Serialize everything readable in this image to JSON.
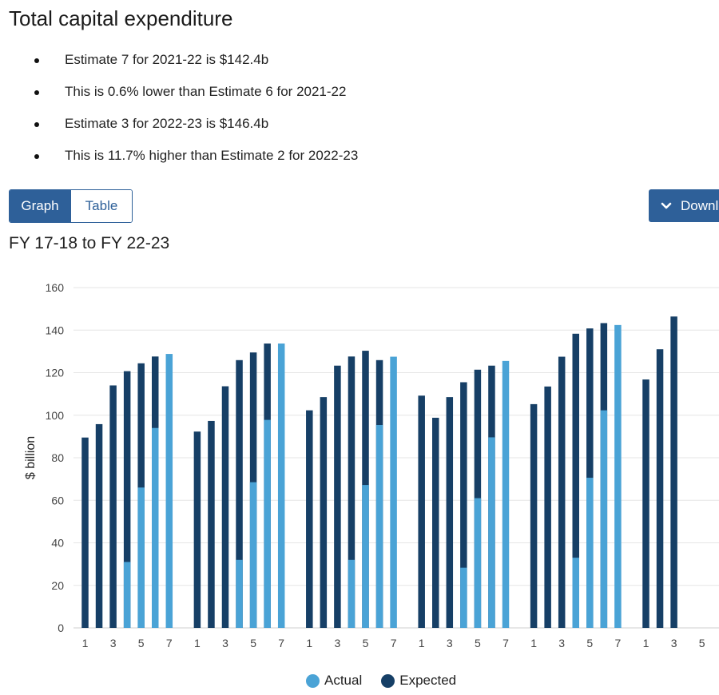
{
  "page": {
    "title": "Total capital expenditure",
    "bullets": [
      "Estimate 7 for 2021-22 is $142.4b",
      "This is 0.6% lower than Estimate 6 for 2021-22",
      "Estimate 3 for 2022-23 is $146.4b",
      "This is 11.7% higher than Estimate 2 for 2022-23"
    ],
    "tabs": {
      "graph": "Graph",
      "table": "Table"
    },
    "download_label": "Download",
    "subtitle": "FY 17-18 to FY 22-23"
  },
  "colors": {
    "actual": "#4aa3d6",
    "expected": "#163f66",
    "button": "#2e6099"
  },
  "icons": {
    "download": "chevron-down-icon"
  },
  "chart_data": {
    "type": "bar",
    "ylabel": "$ billion",
    "ylim": [
      0,
      160
    ],
    "yticks": [
      0,
      20,
      40,
      60,
      80,
      100,
      120,
      140,
      160
    ],
    "x_tick_labels": [
      "1",
      "3",
      "5",
      "7"
    ],
    "last_group_tick_labels": [
      "1",
      "3",
      "5"
    ],
    "legend": [
      "Actual",
      "Expected"
    ],
    "legend_position": "bottom-center",
    "grid": true,
    "groups": [
      {
        "estimates": [
          1,
          2,
          3,
          4,
          5,
          6,
          7
        ],
        "actual": [
          0,
          0,
          0,
          31,
          66,
          94,
          128.8
        ],
        "expected": [
          89.5,
          95.8,
          114,
          120.7,
          124.4,
          127.6,
          0
        ]
      },
      {
        "estimates": [
          1,
          2,
          3,
          4,
          5,
          6,
          7
        ],
        "actual": [
          0,
          0,
          0,
          32,
          68.5,
          97.8,
          133.7
        ],
        "expected": [
          92.3,
          97.3,
          113.6,
          125.9,
          129.5,
          133.7,
          0
        ]
      },
      {
        "estimates": [
          1,
          2,
          3,
          4,
          5,
          6,
          7
        ],
        "actual": [
          0,
          0,
          0,
          32,
          67.2,
          95.4,
          127.5
        ],
        "expected": [
          102.3,
          108.5,
          123.3,
          127.6,
          130.3,
          125.9,
          0
        ]
      },
      {
        "estimates": [
          1,
          2,
          3,
          4,
          5,
          6,
          7
        ],
        "actual": [
          0,
          0,
          0,
          28.3,
          61,
          89.6,
          125.5
        ],
        "expected": [
          109.2,
          98.8,
          108.5,
          115.5,
          121.4,
          123.3,
          0
        ]
      },
      {
        "estimates": [
          1,
          2,
          3,
          4,
          5,
          6,
          7
        ],
        "actual": [
          0,
          0,
          0,
          33,
          70.6,
          102.3,
          142.4
        ],
        "expected": [
          105.2,
          113.5,
          127.5,
          138.3,
          140.8,
          143.3,
          0
        ]
      },
      {
        "estimates": [
          1,
          2,
          3,
          4,
          5
        ],
        "actual": [
          0,
          0,
          0,
          0,
          0
        ],
        "expected": [
          116.8,
          131,
          146.4,
          0,
          0
        ]
      }
    ]
  }
}
